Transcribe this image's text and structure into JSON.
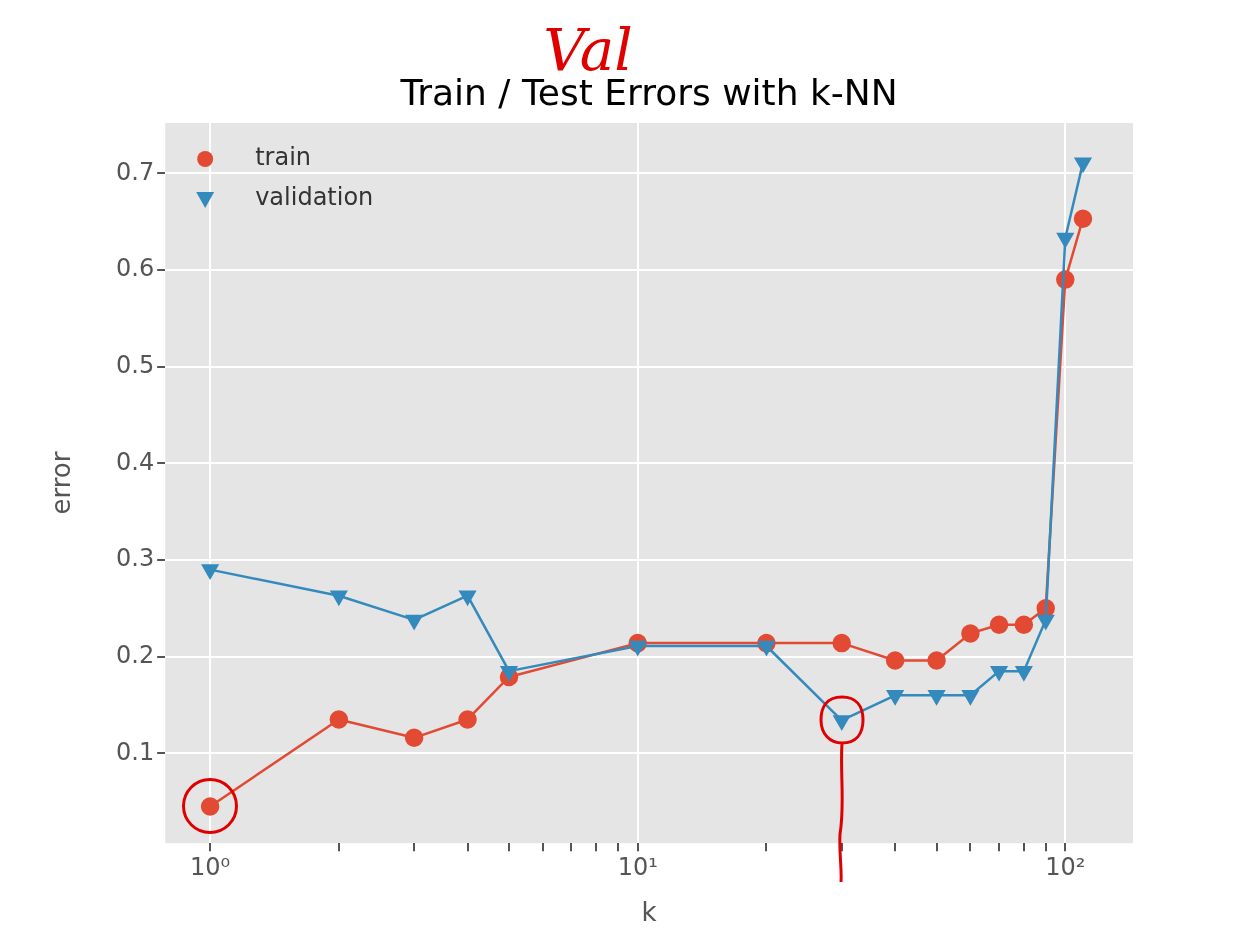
{
  "chart_data": {
    "type": "line",
    "title": "Train / Test Errors with k-NN",
    "annotations": [
      "Val"
    ],
    "xlabel": "k",
    "ylabel": "error",
    "log": "x",
    "grid": true,
    "legend": "top left",
    "xlim": [
      0.785,
      144
    ],
    "ylim": [
      0.007,
      0.752
    ],
    "xticks": [
      {
        "value": 1,
        "label": "10⁰"
      },
      {
        "value": 2,
        "label": null
      },
      {
        "value": 3,
        "label": null
      },
      {
        "value": 4,
        "label": null
      },
      {
        "value": 5,
        "label": null
      },
      {
        "value": 6,
        "label": null
      },
      {
        "value": 7,
        "label": null
      },
      {
        "value": 8,
        "label": null
      },
      {
        "value": 9,
        "label": null
      },
      {
        "value": 10,
        "label": "10¹"
      },
      {
        "value": 20,
        "label": null
      },
      {
        "value": 30,
        "label": null
      },
      {
        "value": 40,
        "label": null
      },
      {
        "value": 50,
        "label": null
      },
      {
        "value": 60,
        "label": null
      },
      {
        "value": 70,
        "label": null
      },
      {
        "value": 80,
        "label": null
      },
      {
        "value": 90,
        "label": null
      },
      {
        "value": 100,
        "label": "10²"
      }
    ],
    "yticks": [
      0.1,
      0.2,
      0.3,
      0.4,
      0.5,
      0.6,
      0.7
    ],
    "x": [
      1,
      2,
      3,
      4,
      5,
      10,
      20,
      30,
      40,
      50,
      60,
      70,
      80,
      90,
      100,
      110
    ],
    "series": [
      {
        "name": "train",
        "color": "#e24a33",
        "marker": "circle",
        "values": [
          0.045,
          0.135,
          0.116,
          0.135,
          0.179,
          0.214,
          0.214,
          0.214,
          0.196,
          0.196,
          0.224,
          0.233,
          0.233,
          0.25,
          0.59,
          0.653
        ]
      },
      {
        "name": "validation",
        "color": "#348abd",
        "marker": "triangle",
        "values": [
          0.29,
          0.263,
          0.238,
          0.263,
          0.185,
          0.211,
          0.211,
          0.134,
          0.16,
          0.16,
          0.16,
          0.185,
          0.185,
          0.238,
          0.633,
          0.711
        ]
      }
    ]
  }
}
